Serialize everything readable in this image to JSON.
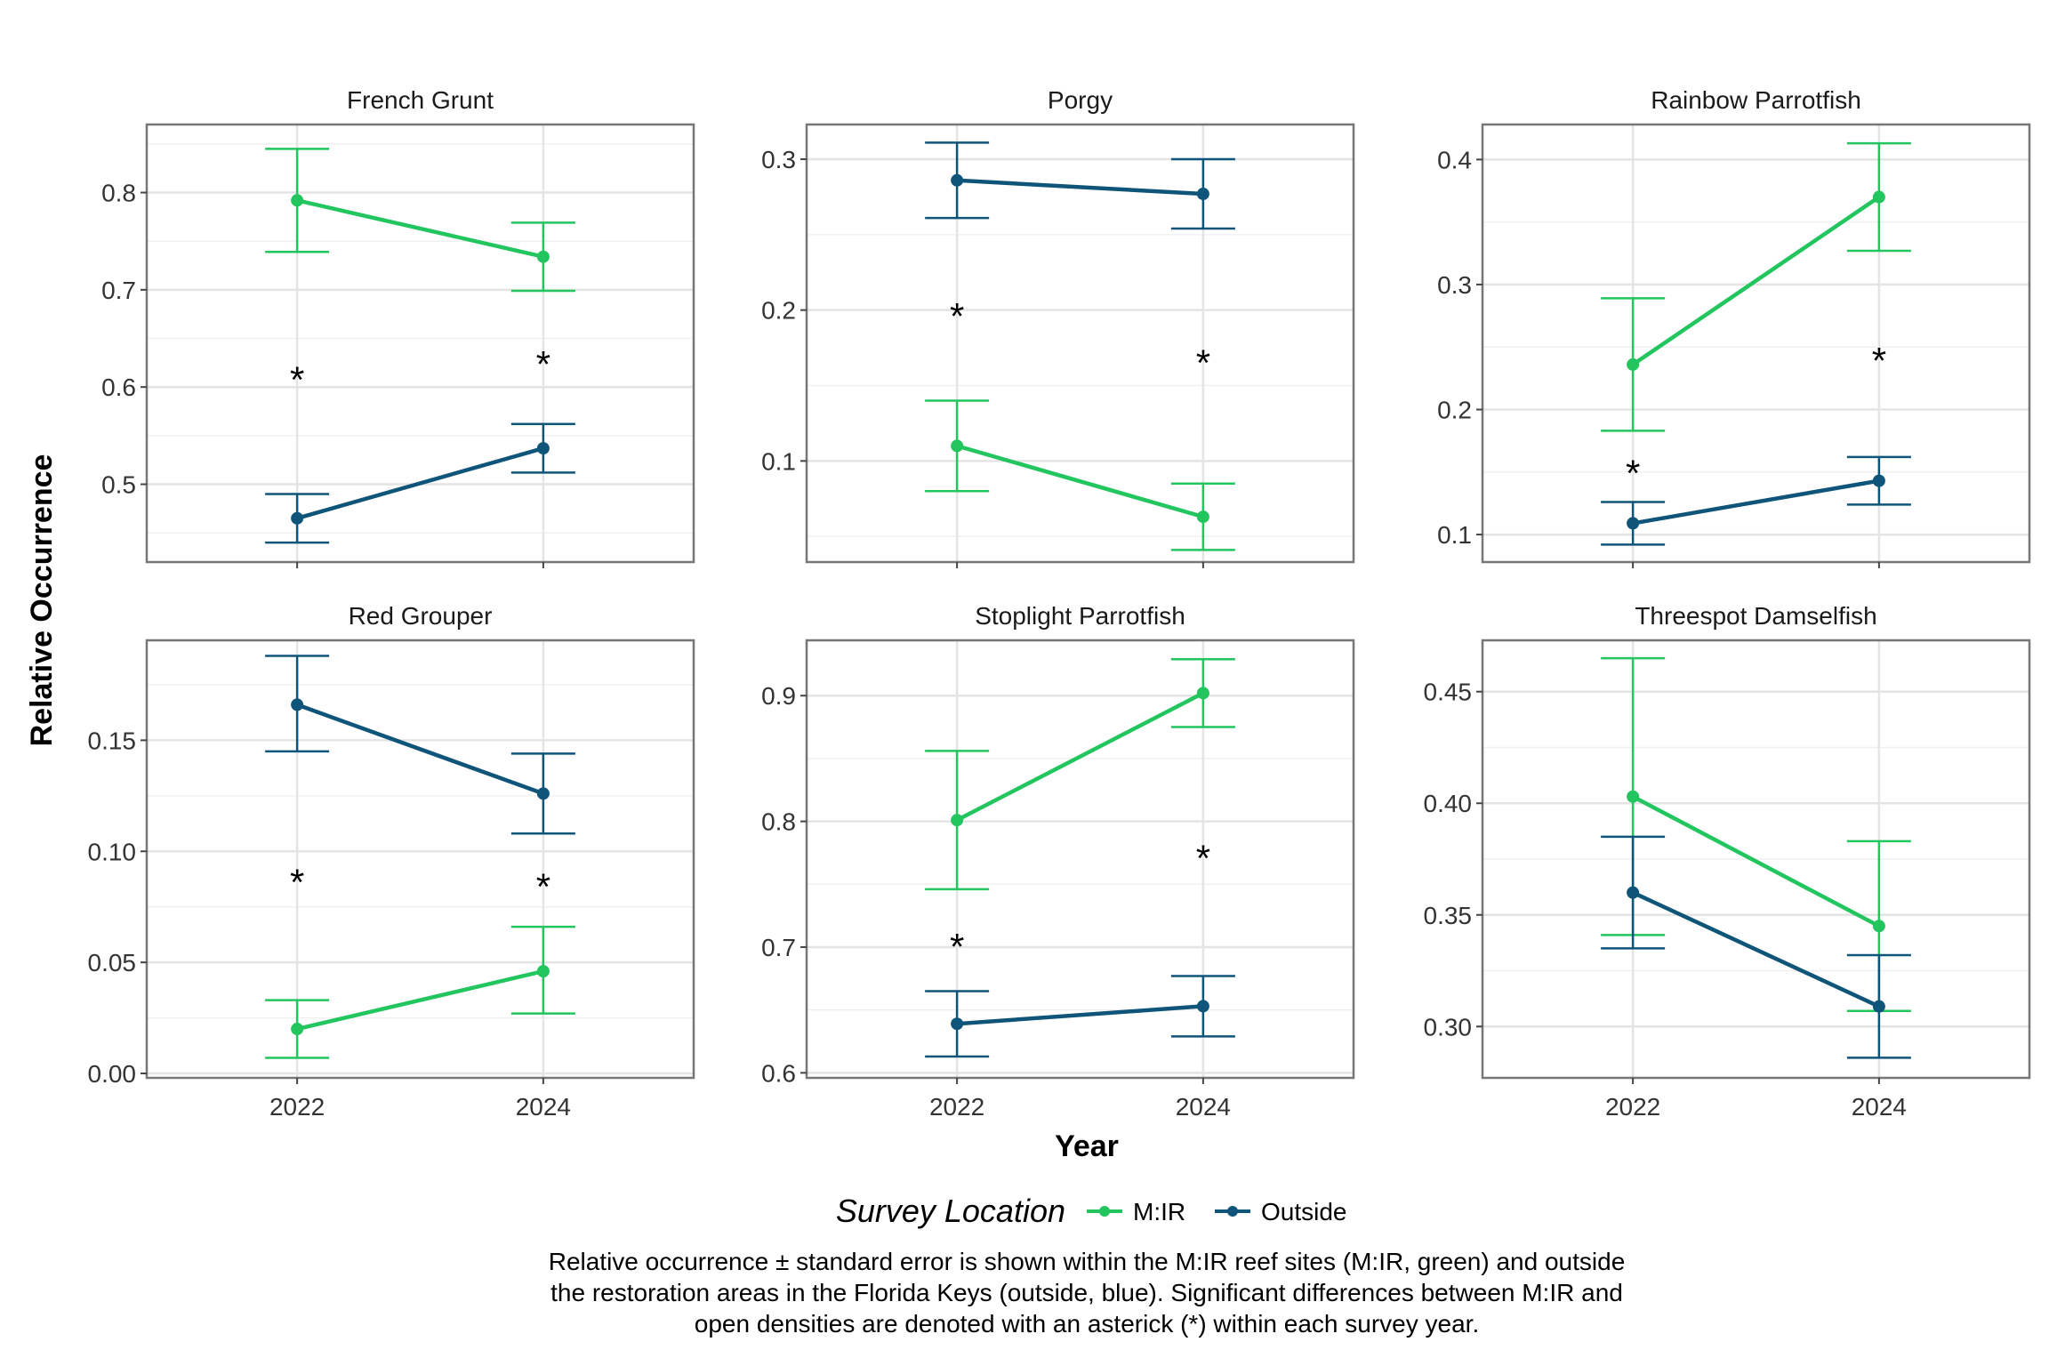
{
  "figure": {
    "xlabel": "Year",
    "ylabel": "Relative Occurrence",
    "legend": {
      "title": "Survey Location",
      "items": [
        {
          "label": "M:IR",
          "color": "#22c55e"
        },
        {
          "label": "Outside",
          "color": "#0f5479"
        }
      ]
    },
    "caption": [
      "Relative occurrence ± standard error is shown within the M:IR reef sites (M:IR, green) and outside",
      "the restoration areas in the Florida Keys (outside, blue). Significant differences between M:IR and",
      "open densities are denoted with an asterick (*) within each survey year."
    ],
    "significance_symbol": "*"
  },
  "chart_data": [
    {
      "type": "line",
      "title": "French Grunt",
      "categories": [
        "2022",
        "2024"
      ],
      "xlabel": "Year",
      "ylabel": "Relative Occurrence",
      "ylim": [
        0.42,
        0.87
      ],
      "yticks": [
        0.5,
        0.6,
        0.7,
        0.8
      ],
      "ytick_labels": [
        "0.5",
        "0.6",
        "0.7",
        "0.8"
      ],
      "significant": [
        true,
        true
      ],
      "series": [
        {
          "name": "M:IR",
          "color": "#22c55e",
          "values": [
            0.792,
            0.734
          ],
          "lower": [
            0.739,
            0.699
          ],
          "upper": [
            0.845,
            0.769
          ]
        },
        {
          "name": "Outside",
          "color": "#0f5479",
          "values": [
            0.465,
            0.537
          ],
          "lower": [
            0.44,
            0.512
          ],
          "upper": [
            0.49,
            0.562
          ]
        }
      ]
    },
    {
      "type": "line",
      "title": "Porgy",
      "categories": [
        "2022",
        "2024"
      ],
      "xlabel": "Year",
      "ylabel": "Relative Occurrence",
      "ylim": [
        0.033,
        0.323
      ],
      "yticks": [
        0.1,
        0.2,
        0.3
      ],
      "ytick_labels": [
        "0.1",
        "0.2",
        "0.3"
      ],
      "significant": [
        true,
        true
      ],
      "series": [
        {
          "name": "M:IR",
          "color": "#22c55e",
          "values": [
            0.11,
            0.063
          ],
          "lower": [
            0.08,
            0.041
          ],
          "upper": [
            0.14,
            0.085
          ]
        },
        {
          "name": "Outside",
          "color": "#0f5479",
          "values": [
            0.286,
            0.277
          ],
          "lower": [
            0.261,
            0.254
          ],
          "upper": [
            0.311,
            0.3
          ]
        }
      ]
    },
    {
      "type": "line",
      "title": "Rainbow Parrotfish",
      "categories": [
        "2022",
        "2024"
      ],
      "xlabel": "Year",
      "ylabel": "Relative Occurrence",
      "ylim": [
        0.078,
        0.428
      ],
      "yticks": [
        0.1,
        0.2,
        0.3,
        0.4
      ],
      "ytick_labels": [
        "0.1",
        "0.2",
        "0.3",
        "0.4"
      ],
      "significant": [
        true,
        true
      ],
      "series": [
        {
          "name": "M:IR",
          "color": "#22c55e",
          "values": [
            0.236,
            0.37
          ],
          "lower": [
            0.183,
            0.327
          ],
          "upper": [
            0.289,
            0.413
          ]
        },
        {
          "name": "Outside",
          "color": "#0f5479",
          "values": [
            0.109,
            0.143
          ],
          "lower": [
            0.092,
            0.124
          ],
          "upper": [
            0.126,
            0.162
          ]
        }
      ]
    },
    {
      "type": "line",
      "title": "Red Grouper",
      "categories": [
        "2022",
        "2024"
      ],
      "xlabel": "Year",
      "ylabel": "Relative Occurrence",
      "ylim": [
        -0.002,
        0.195
      ],
      "yticks": [
        0.0,
        0.05,
        0.1,
        0.15
      ],
      "ytick_labels": [
        "0.00",
        "0.05",
        "0.10",
        "0.15"
      ],
      "significant": [
        true,
        true
      ],
      "series": [
        {
          "name": "M:IR",
          "color": "#22c55e",
          "values": [
            0.02,
            0.046
          ],
          "lower": [
            0.007,
            0.027
          ],
          "upper": [
            0.033,
            0.066
          ]
        },
        {
          "name": "Outside",
          "color": "#0f5479",
          "values": [
            0.166,
            0.126
          ],
          "lower": [
            0.145,
            0.108
          ],
          "upper": [
            0.188,
            0.144
          ]
        }
      ]
    },
    {
      "type": "line",
      "title": "Stoplight Parrotfish",
      "categories": [
        "2022",
        "2024"
      ],
      "xlabel": "Year",
      "ylabel": "Relative Occurrence",
      "ylim": [
        0.596,
        0.944
      ],
      "yticks": [
        0.6,
        0.7,
        0.8,
        0.9
      ],
      "ytick_labels": [
        "0.6",
        "0.7",
        "0.8",
        "0.9"
      ],
      "significant": [
        true,
        true
      ],
      "series": [
        {
          "name": "M:IR",
          "color": "#22c55e",
          "values": [
            0.801,
            0.902
          ],
          "lower": [
            0.746,
            0.875
          ],
          "upper": [
            0.856,
            0.929
          ]
        },
        {
          "name": "Outside",
          "color": "#0f5479",
          "values": [
            0.639,
            0.653
          ],
          "lower": [
            0.613,
            0.629
          ],
          "upper": [
            0.665,
            0.677
          ]
        }
      ]
    },
    {
      "type": "line",
      "title": "Threespot Damselfish",
      "categories": [
        "2022",
        "2024"
      ],
      "xlabel": "Year",
      "ylabel": "Relative Occurrence",
      "ylim": [
        0.277,
        0.473
      ],
      "yticks": [
        0.3,
        0.35,
        0.4,
        0.45
      ],
      "ytick_labels": [
        "0.30",
        "0.35",
        "0.40",
        "0.45"
      ],
      "significant": [
        false,
        false
      ],
      "series": [
        {
          "name": "M:IR",
          "color": "#22c55e",
          "values": [
            0.403,
            0.345
          ],
          "lower": [
            0.341,
            0.307
          ],
          "upper": [
            0.465,
            0.383
          ]
        },
        {
          "name": "Outside",
          "color": "#0f5479",
          "values": [
            0.36,
            0.309
          ],
          "lower": [
            0.335,
            0.286
          ],
          "upper": [
            0.385,
            0.332
          ]
        }
      ]
    }
  ]
}
